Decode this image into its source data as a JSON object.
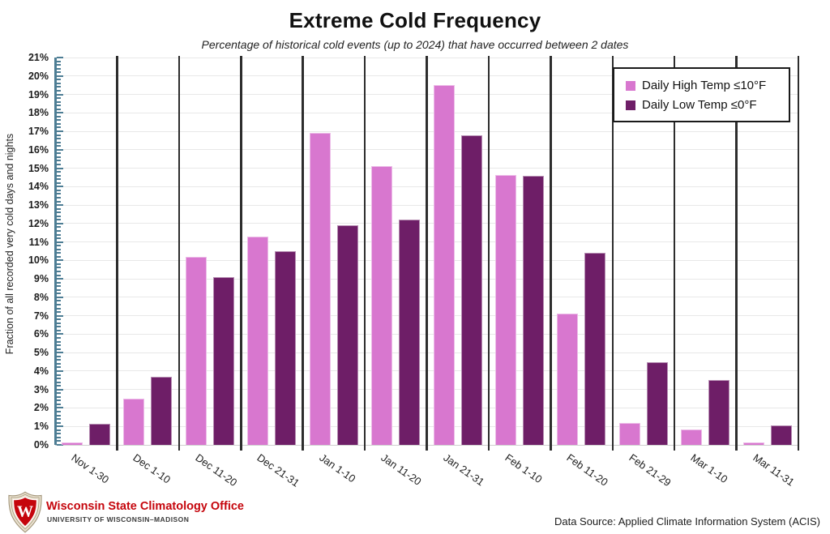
{
  "chart_data": {
    "type": "bar",
    "title": "Extreme Cold Frequency",
    "subtitle": "Percentage of historical cold events (up to 2024) that have occurred between 2 dates",
    "ylabel": "Fraction of all recorded very cold days and nights",
    "xlabel": "",
    "ylim": [
      0,
      21
    ],
    "grid": true,
    "legend_position": "top-right",
    "ytick_labels": [
      "0%",
      "1%",
      "2%",
      "3%",
      "4%",
      "5%",
      "6%",
      "7%",
      "8%",
      "9%",
      "10%",
      "11%",
      "12%",
      "13%",
      "14%",
      "15%",
      "16%",
      "17%",
      "18%",
      "19%",
      "20%",
      "21%"
    ],
    "categories": [
      "Nov 1-30",
      "Dec 1-10",
      "Dec 11-20",
      "Dec 21-31",
      "Jan 1-10",
      "Jan 11-20",
      "Jan 21-31",
      "Feb 1-10",
      "Feb 11-20",
      "Feb 21-29",
      "Mar 1-10",
      "Mar 11-31"
    ],
    "series": [
      {
        "name": "Daily High Temp ≤10°F",
        "color": "#d877cf",
        "values": [
          0.15,
          2.5,
          10.2,
          11.3,
          16.9,
          15.1,
          19.5,
          14.65,
          7.1,
          1.2,
          0.85,
          0.12
        ]
      },
      {
        "name": "Daily Low Temp ≤0°F",
        "color": "#6e1e67",
        "values": [
          1.15,
          3.7,
          9.1,
          10.5,
          11.9,
          12.2,
          16.8,
          14.6,
          10.4,
          4.5,
          3.5,
          1.05
        ]
      }
    ]
  },
  "style": {
    "axis_color": "#4d7d94",
    "separator_color": "#2d2d2d",
    "gridline_color": "#e8e8e8",
    "brand_red": "#c5050c"
  },
  "footer": {
    "logo_icon": "uw-crest-icon",
    "org_name": "Wisconsin State Climatology Office",
    "org_sub": "UNIVERSITY OF WISCONSIN–MADISON",
    "data_source": "Data Source: Applied Climate Information System (ACIS)"
  }
}
